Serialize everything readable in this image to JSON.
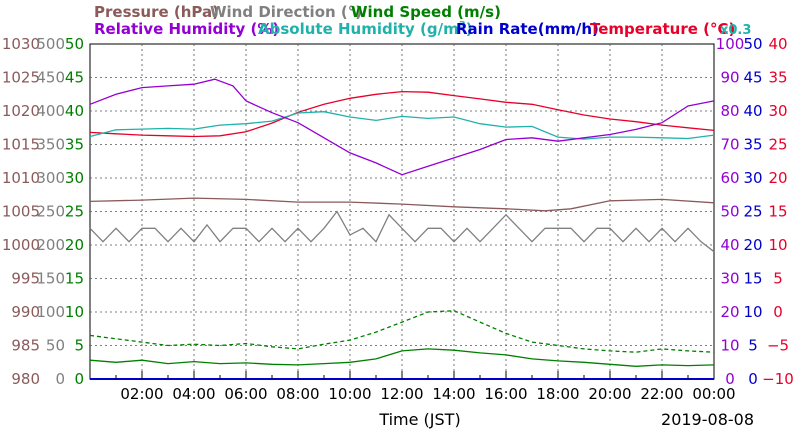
{
  "legend": {
    "row1": [
      {
        "label": "Pressure (hPa)",
        "color": "#8b5a5a"
      },
      {
        "label": "Wind Direction (°)",
        "color": "#808080"
      },
      {
        "label": "Wind Speed (m/s)",
        "color": "#008000"
      }
    ],
    "row2": [
      {
        "label": "Relative Humidity (%)",
        "color": "#9400d3"
      },
      {
        "label": "Absolute Humidity (g/m",
        "sup": "3",
        "close": ")",
        "color": "#20b2aa"
      },
      {
        "label": "Rain Rate(mm/h)",
        "color": "#0000cd"
      },
      {
        "label": "Temperature (°C)",
        "color": "#e8002a"
      }
    ],
    "x_factor": "x0.3"
  },
  "chart_data": {
    "type": "line",
    "xlabel": "Time (JST)",
    "date": "2019-08-08",
    "x_range_hours": [
      0,
      24
    ],
    "x_ticks": [
      "02:00",
      "04:00",
      "06:00",
      "08:00",
      "10:00",
      "12:00",
      "14:00",
      "16:00",
      "18:00",
      "20:00",
      "22:00",
      "00:00"
    ],
    "left_axes": [
      {
        "name": "pressure",
        "color": "#8b5a5a",
        "ticks": [
          "980",
          "985",
          "990",
          "995",
          "1000",
          "1005",
          "1010",
          "1015",
          "1020",
          "1025",
          "1030"
        ]
      },
      {
        "name": "wind_direction",
        "color": "#808080",
        "ticks": [
          "0",
          "50",
          "100",
          "150",
          "200",
          "250",
          "300",
          "350",
          "400",
          "450",
          "500"
        ]
      },
      {
        "name": "wind_speed",
        "color": "#008000",
        "ticks": [
          "0",
          "5",
          "10",
          "15",
          "20",
          "25",
          "30",
          "35",
          "40",
          "45",
          "50"
        ]
      }
    ],
    "right_axes": [
      {
        "name": "relative_humidity",
        "color": "#9400d3",
        "ticks": [
          "0",
          "10",
          "20",
          "30",
          "40",
          "50",
          "60",
          "70",
          "80",
          "90",
          "100"
        ]
      },
      {
        "name": "rain_rate",
        "color": "#0000cd",
        "ticks": [
          "0",
          "5",
          "10",
          "15",
          "20",
          "25",
          "30",
          "35",
          "40",
          "45",
          "50"
        ]
      },
      {
        "name": "temperature",
        "color": "#e8002a",
        "ticks": [
          "−10",
          "−5",
          "0",
          "5",
          "10",
          "15",
          "20",
          "25",
          "30",
          "35",
          "40"
        ]
      }
    ],
    "series": [
      {
        "name": "Temperature (°C)",
        "axis": "temperature",
        "color": "#e8002a",
        "x": [
          0,
          1,
          2,
          3,
          4,
          5,
          6,
          7,
          8,
          9,
          10,
          11,
          12,
          13,
          14,
          15,
          16,
          17,
          18,
          19,
          20,
          21,
          22,
          23,
          24
        ],
        "y": [
          26.8,
          26.6,
          26.4,
          26.3,
          26.2,
          26.3,
          26.9,
          28.2,
          29.8,
          31.0,
          31.9,
          32.5,
          32.9,
          32.8,
          32.3,
          31.8,
          31.3,
          31.0,
          30.2,
          29.4,
          28.8,
          28.4,
          27.9,
          27.5,
          27.1
        ]
      },
      {
        "name": "Absolute Humidity (g/m3)",
        "axis": "temperature",
        "color": "#20b2aa",
        "x": [
          0,
          1,
          2,
          3,
          4,
          5,
          6,
          7,
          8,
          9,
          10,
          11,
          12,
          13,
          14,
          15,
          16,
          17,
          18,
          19,
          20,
          21,
          22,
          23,
          24
        ],
        "y": [
          26.2,
          27.2,
          27.3,
          27.4,
          27.3,
          27.9,
          28.1,
          28.5,
          29.7,
          29.9,
          29.1,
          28.6,
          29.2,
          28.9,
          29.1,
          28.1,
          27.6,
          27.7,
          26.1,
          25.8,
          26.1,
          26.1,
          26.0,
          25.9,
          26.4
        ]
      },
      {
        "name": "Relative Humidity (%)",
        "axis": "relative_humidity",
        "color": "#9400d3",
        "x": [
          0,
          1,
          2,
          3,
          4,
          4.8,
          5.5,
          6,
          7,
          8,
          9,
          10,
          11,
          12,
          13,
          14,
          15,
          16,
          17,
          18,
          19,
          20,
          21,
          22,
          23,
          24
        ],
        "y": [
          82,
          85,
          87,
          87.5,
          88,
          89.5,
          87.5,
          83,
          79.5,
          76.5,
          72,
          67.5,
          64.5,
          61,
          63.5,
          66,
          68.5,
          71.5,
          72,
          71,
          72,
          73,
          74.5,
          76.5,
          81.5,
          83
        ]
      },
      {
        "name": "Pressure (hPa)",
        "axis": "pressure",
        "color": "#8b5a5a",
        "x": [
          0,
          2,
          4,
          6,
          8,
          10,
          12,
          14,
          16,
          17.5,
          18.5,
          20,
          22,
          24
        ],
        "y": [
          1006.5,
          1006.7,
          1007.0,
          1006.8,
          1006.4,
          1006.4,
          1006.1,
          1005.7,
          1005.4,
          1005.1,
          1005.4,
          1006.6,
          1006.8,
          1006.3
        ]
      },
      {
        "name": "Wind Direction (°)",
        "axis": "wind_direction",
        "color": "#808080",
        "x": [
          0,
          0.5,
          1,
          1.5,
          2,
          2.5,
          3,
          3.5,
          4,
          4.5,
          5,
          5.5,
          6,
          6.5,
          7,
          7.5,
          8,
          8.5,
          9,
          9.5,
          10,
          10.5,
          11,
          11.5,
          12,
          12.5,
          13,
          13.5,
          14,
          14.5,
          15,
          15.5,
          16,
          16.5,
          17,
          17.5,
          18,
          18.5,
          19,
          19.5,
          20,
          20.5,
          21,
          21.5,
          22,
          22.5,
          23,
          23.5,
          24
        ],
        "y": [
          225,
          205,
          225,
          205,
          225,
          225,
          205,
          225,
          205,
          230,
          205,
          225,
          225,
          205,
          225,
          205,
          225,
          205,
          225,
          250,
          215,
          225,
          205,
          245,
          225,
          205,
          225,
          225,
          205,
          225,
          205,
          225,
          245,
          225,
          205,
          225,
          225,
          225,
          205,
          225,
          225,
          205,
          225,
          205,
          225,
          205,
          225,
          205,
          190
        ]
      },
      {
        "name": "Wind Speed (m/s) avg",
        "axis": "wind_speed",
        "color": "#008000",
        "x": [
          0,
          1,
          2,
          3,
          4,
          5,
          6,
          7,
          8,
          9,
          10,
          11,
          12,
          13,
          14,
          15,
          16,
          17,
          18,
          19,
          20,
          21,
          22,
          23,
          24
        ],
        "y": [
          2.8,
          2.5,
          2.8,
          2.3,
          2.6,
          2.3,
          2.4,
          2.2,
          2.1,
          2.3,
          2.5,
          3.0,
          4.2,
          4.5,
          4.3,
          3.9,
          3.6,
          3.0,
          2.7,
          2.5,
          2.2,
          1.9,
          2.1,
          2.0,
          2.1
        ]
      },
      {
        "name": "Wind Speed (m/s) max",
        "axis": "wind_speed",
        "color": "#008000",
        "dashed": true,
        "x": [
          0,
          1,
          2,
          3,
          4,
          5,
          6,
          7,
          8,
          9,
          10,
          11,
          12,
          13,
          14,
          15,
          16,
          17,
          18,
          19,
          20,
          21,
          22,
          23,
          24
        ],
        "y": [
          6.5,
          6.0,
          5.5,
          5.0,
          5.2,
          5.0,
          5.3,
          4.8,
          4.5,
          5.2,
          5.8,
          7.0,
          8.5,
          10.0,
          10.2,
          8.5,
          6.8,
          5.5,
          5.0,
          4.5,
          4.2,
          4.0,
          4.5,
          4.2,
          4.0
        ]
      },
      {
        "name": "Rain Rate(mm/h)",
        "axis": "rain_rate",
        "color": "#0000cd",
        "x": [
          0,
          24
        ],
        "y": [
          0,
          0
        ]
      }
    ]
  }
}
